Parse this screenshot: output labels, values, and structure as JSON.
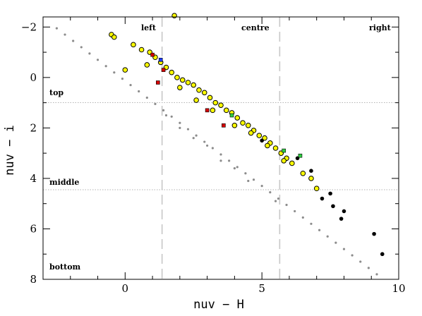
{
  "chart_data": {
    "type": "scatter",
    "title": "",
    "xlabel": "nuv − H",
    "ylabel": "nuv − i",
    "xlim": [
      -3,
      10
    ],
    "ylim": [
      8,
      -2.4
    ],
    "y_inverted": true,
    "xticks": [
      0,
      5,
      10
    ],
    "yticks": [
      -2,
      0,
      2,
      4,
      6,
      8
    ],
    "ytick_labels": [
      "−2",
      "0",
      "2",
      "4",
      "6",
      "8"
    ],
    "grid": false,
    "region_lines": {
      "vertical": [
        1.35,
        5.65
      ],
      "horizontal": [
        1.0,
        4.45
      ]
    },
    "region_labels": {
      "left": "left",
      "centre": "centre",
      "right": "right",
      "top": "top",
      "middle": "middle",
      "bottom": "bottom"
    },
    "colors": {
      "stellar_locus": "#8c8c8c",
      "galaxies_fill": "#ffff00",
      "galaxies_edge": "#000000",
      "red": "#d40000",
      "blue": "#1e3cff",
      "green": "#2ecc40",
      "black": "#000000",
      "region_line": "#c8c8c8"
    },
    "series": [
      {
        "marker": "small grey dots",
        "points": [
          [
            -2.5,
            -1.95
          ],
          [
            -2.2,
            -1.7
          ],
          [
            -1.9,
            -1.45
          ],
          [
            -1.6,
            -1.2
          ],
          [
            -1.3,
            -0.95
          ],
          [
            -1.0,
            -0.7
          ],
          [
            -0.7,
            -0.45
          ],
          [
            -0.4,
            -0.2
          ],
          [
            -0.1,
            0.05
          ],
          [
            0.2,
            0.3
          ],
          [
            0.5,
            0.55
          ],
          [
            0.8,
            0.8
          ],
          [
            1.1,
            1.05
          ],
          [
            1.4,
            1.3
          ],
          [
            1.7,
            1.55
          ],
          [
            2.0,
            1.8
          ],
          [
            2.3,
            2.05
          ],
          [
            2.6,
            2.3
          ],
          [
            2.9,
            2.55
          ],
          [
            3.2,
            2.8
          ],
          [
            3.5,
            3.05
          ],
          [
            3.8,
            3.3
          ],
          [
            4.1,
            3.55
          ],
          [
            4.4,
            3.8
          ],
          [
            4.7,
            4.05
          ],
          [
            5.0,
            4.3
          ],
          [
            5.3,
            4.55
          ],
          [
            5.6,
            4.8
          ],
          [
            5.9,
            5.05
          ],
          [
            6.2,
            5.3
          ],
          [
            6.5,
            5.55
          ],
          [
            6.8,
            5.8
          ],
          [
            7.1,
            6.05
          ],
          [
            7.4,
            6.3
          ],
          [
            7.7,
            6.55
          ],
          [
            8.0,
            6.8
          ],
          [
            8.3,
            7.05
          ],
          [
            8.6,
            7.3
          ],
          [
            8.9,
            7.55
          ],
          [
            9.2,
            7.8
          ],
          [
            1.5,
            1.5
          ],
          [
            2.5,
            2.4
          ],
          [
            3.5,
            3.3
          ],
          [
            4.5,
            4.1
          ],
          [
            5.5,
            4.9
          ],
          [
            3.0,
            2.7
          ],
          [
            4.0,
            3.6
          ],
          [
            2.0,
            2.0
          ]
        ]
      },
      {
        "marker": "yellow circles",
        "points": [
          [
            -0.5,
            -1.7
          ],
          [
            -0.4,
            -1.6
          ],
          [
            0.3,
            -1.3
          ],
          [
            0.6,
            -1.1
          ],
          [
            0.9,
            -1.0
          ],
          [
            1.1,
            -0.8
          ],
          [
            1.3,
            -0.6
          ],
          [
            1.5,
            -0.4
          ],
          [
            1.7,
            -0.2
          ],
          [
            1.8,
            -2.45
          ],
          [
            1.9,
            0.0
          ],
          [
            2.1,
            0.1
          ],
          [
            2.3,
            0.2
          ],
          [
            2.5,
            0.3
          ],
          [
            2.7,
            0.5
          ],
          [
            2.9,
            0.6
          ],
          [
            3.1,
            0.8
          ],
          [
            3.3,
            1.0
          ],
          [
            3.5,
            1.1
          ],
          [
            3.7,
            1.3
          ],
          [
            3.9,
            1.4
          ],
          [
            4.1,
            1.6
          ],
          [
            4.3,
            1.8
          ],
          [
            4.5,
            1.9
          ],
          [
            4.7,
            2.1
          ],
          [
            4.9,
            2.3
          ],
          [
            5.1,
            2.4
          ],
          [
            5.3,
            2.6
          ],
          [
            5.5,
            2.8
          ],
          [
            5.7,
            3.0
          ],
          [
            5.9,
            3.2
          ],
          [
            6.1,
            3.4
          ],
          [
            6.5,
            3.8
          ],
          [
            6.8,
            4.0
          ],
          [
            7.0,
            4.4
          ],
          [
            0.0,
            -0.3
          ],
          [
            0.8,
            -0.5
          ],
          [
            2.0,
            0.4
          ],
          [
            2.6,
            0.9
          ],
          [
            3.2,
            1.3
          ],
          [
            4.0,
            1.9
          ],
          [
            4.6,
            2.2
          ],
          [
            5.2,
            2.7
          ],
          [
            5.8,
            3.3
          ]
        ]
      },
      {
        "marker": "black dots",
        "points": [
          [
            7.2,
            4.8
          ],
          [
            7.5,
            4.6
          ],
          [
            7.6,
            5.1
          ],
          [
            8.0,
            5.3
          ],
          [
            7.9,
            5.6
          ],
          [
            9.1,
            6.2
          ],
          [
            9.4,
            7.0
          ],
          [
            6.3,
            3.2
          ],
          [
            6.8,
            3.7
          ],
          [
            5.0,
            2.5
          ]
        ]
      },
      {
        "marker": "red squares",
        "points": [
          [
            1.0,
            -0.9
          ],
          [
            1.4,
            -0.3
          ],
          [
            1.2,
            0.2
          ],
          [
            3.0,
            1.3
          ],
          [
            3.6,
            1.9
          ]
        ]
      },
      {
        "marker": "blue squares",
        "points": [
          [
            1.3,
            -0.7
          ]
        ]
      },
      {
        "marker": "green squares",
        "points": [
          [
            3.9,
            1.5
          ],
          [
            5.8,
            2.9
          ],
          [
            6.4,
            3.1
          ]
        ]
      }
    ]
  }
}
